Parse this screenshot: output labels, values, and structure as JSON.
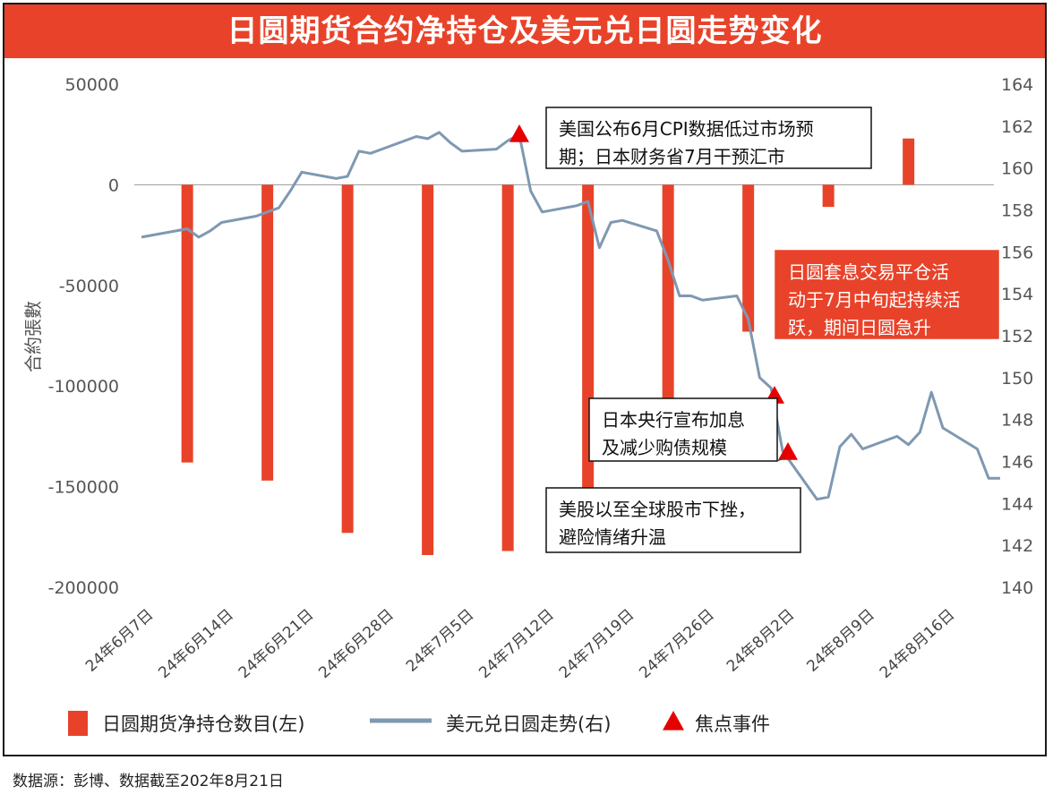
{
  "title": "日圆期货合约净持仓及美元兑日圆走势变化",
  "source": "数据源：彭博、数据截至202年8月21日",
  "colors": {
    "bar": "#e8432a",
    "line": "#7f98b2",
    "marker": "#e60000",
    "title_bg": "#e8432a"
  },
  "chart_data": {
    "type": "bar+line",
    "ylabel_left": "合約張數",
    "ylim_left": [
      -200000,
      50000
    ],
    "yticks_left": [
      "50000",
      "0",
      "-50000",
      "-100000",
      "-150000",
      "-200000"
    ],
    "ylim_right": [
      140,
      164
    ],
    "yticks_right": [
      "164",
      "162",
      "160",
      "158",
      "156",
      "154",
      "152",
      "150",
      "148",
      "146",
      "144",
      "142",
      "140"
    ],
    "x_range": [
      "2024-06-07",
      "2024-08-21"
    ],
    "xticks": [
      "24年6月7日",
      "24年6月14日",
      "24年6月21日",
      "24年6月28日",
      "24年7月5日",
      "24年7月12日",
      "24年7月19日",
      "24年7月26日",
      "24年8月2日",
      "24年8月9日",
      "24年8月16日"
    ],
    "bars": {
      "name": "日圆期货净持仓数目(左)",
      "dates": [
        "2024-06-11",
        "2024-06-18",
        "2024-06-25",
        "2024-07-02",
        "2024-07-09",
        "2024-07-16",
        "2024-07-23",
        "2024-07-30",
        "2024-08-06",
        "2024-08-13"
      ],
      "values": [
        -138000,
        -147000,
        -173000,
        -184000,
        -182000,
        -151000,
        -107000,
        -73000,
        -11000,
        23000
      ]
    },
    "line": {
      "name": "美元兑日圆走势(右)",
      "dates": [
        "2024-06-07",
        "2024-06-11",
        "2024-06-12",
        "2024-06-13",
        "2024-06-14",
        "2024-06-17",
        "2024-06-18",
        "2024-06-19",
        "2024-06-20",
        "2024-06-21",
        "2024-06-24",
        "2024-06-25",
        "2024-06-26",
        "2024-06-27",
        "2024-06-28",
        "2024-07-01",
        "2024-07-02",
        "2024-07-03",
        "2024-07-04",
        "2024-07-05",
        "2024-07-08",
        "2024-07-09",
        "2024-07-10",
        "2024-07-11",
        "2024-07-12",
        "2024-07-15",
        "2024-07-16",
        "2024-07-17",
        "2024-07-18",
        "2024-07-19",
        "2024-07-22",
        "2024-07-23",
        "2024-07-24",
        "2024-07-25",
        "2024-07-26",
        "2024-07-29",
        "2024-07-30",
        "2024-07-31",
        "2024-08-01",
        "2024-08-02",
        "2024-08-05",
        "2024-08-06",
        "2024-08-07",
        "2024-08-08",
        "2024-08-09",
        "2024-08-12",
        "2024-08-13",
        "2024-08-14",
        "2024-08-15",
        "2024-08-16",
        "2024-08-19",
        "2024-08-20",
        "2024-08-21"
      ],
      "values": [
        156.7,
        157.1,
        156.7,
        157.0,
        157.4,
        157.7,
        157.9,
        158.1,
        158.9,
        159.8,
        159.5,
        159.6,
        160.8,
        160.7,
        160.9,
        161.5,
        161.4,
        161.7,
        161.2,
        160.8,
        160.9,
        161.3,
        161.6,
        158.9,
        157.9,
        158.2,
        158.4,
        156.2,
        157.4,
        157.5,
        157.0,
        155.6,
        153.9,
        153.9,
        153.7,
        153.9,
        152.8,
        150.0,
        149.5,
        146.5,
        144.2,
        144.3,
        146.7,
        147.3,
        146.6,
        147.2,
        146.8,
        147.4,
        149.3,
        147.6,
        146.6,
        145.2,
        145.2
      ]
    },
    "legend_markers": "焦点事件",
    "events": [
      {
        "date": "2024-07-11",
        "label": "美国公布6月CPI数据低过市场预期；日本财务省7月干预汇市",
        "label_lines": [
          "美国公布6月CPI数据低过市场预",
          "期；日本财务省7月干预汇市"
        ]
      },
      {
        "date": "2024-07-31",
        "label": "日本央行宣布加息及减少购债规模",
        "label_lines": [
          "日本央行宣布加息",
          "及减少购债规模"
        ]
      },
      {
        "date": "2024-08-01",
        "label": "美股以至全球股市下挫，避险情绪升温",
        "label_lines": [
          "美股以至全球股市下挫，",
          "避险情绪升温"
        ]
      }
    ],
    "highlight_note": {
      "label": "日圆套息交易平仓活动于7月中旬起持续活跃，期间日圆急升",
      "label_lines": [
        "日圆套息交易平仓活",
        "动于7月中旬起持续活",
        "跃，期间日圆急升"
      ]
    }
  }
}
